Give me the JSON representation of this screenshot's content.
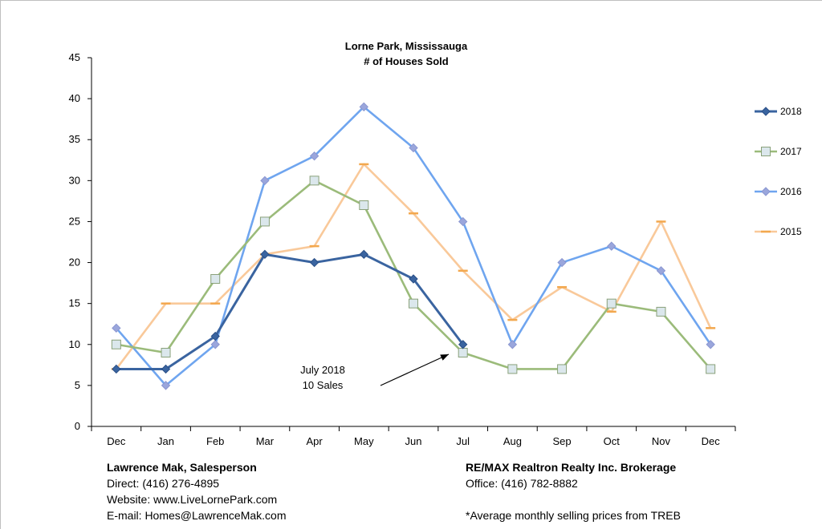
{
  "chart_data": {
    "type": "line",
    "title": "Lorne Park, Mississauga",
    "subtitle": "# of Houses Sold",
    "xlabel": "",
    "ylabel": "",
    "ylim": [
      0,
      45
    ],
    "yticks": [
      0,
      5,
      10,
      15,
      20,
      25,
      30,
      35,
      40,
      45
    ],
    "categories": [
      "Dec",
      "Jan",
      "Feb",
      "Mar",
      "Apr",
      "May",
      "Jun",
      "Jul",
      "Aug",
      "Sep",
      "Oct",
      "Nov",
      "Dec"
    ],
    "grid": false,
    "legend_position": "right",
    "series": [
      {
        "name": "2018",
        "color": "#3a64a0",
        "marker": "diamond",
        "values": [
          7,
          7,
          11,
          21,
          20,
          21,
          18,
          10,
          null,
          null,
          null,
          null,
          null
        ]
      },
      {
        "name": "2017",
        "color": "#9bbb7a",
        "marker": "square",
        "values": [
          10,
          9,
          18,
          25,
          30,
          27,
          15,
          9,
          7,
          7,
          15,
          14,
          7
        ]
      },
      {
        "name": "2016",
        "color": "#6fa5ef",
        "marker": "diamond",
        "values": [
          12,
          5,
          10,
          30,
          33,
          39,
          34,
          25,
          10,
          20,
          22,
          19,
          10
        ]
      },
      {
        "name": "2015",
        "color": "#f9c99a",
        "marker": "dash",
        "values": [
          7,
          15,
          15,
          21,
          22,
          32,
          26,
          19,
          13,
          17,
          14,
          25,
          12
        ]
      }
    ],
    "annotation": {
      "line1": "July 2018",
      "line2": "10 Sales",
      "points_to_category": "Jul",
      "points_to_value": 9
    }
  },
  "footer": {
    "agent_name": "Lawrence Mak, Salesperson",
    "direct": "Direct:  (416) 276-4895",
    "website": "Website:  www.LiveLornePark.com",
    "email": "E-mail:  Homes@LawrenceMak.com",
    "brokerage": "RE/MAX Realtron Realty Inc. Brokerage",
    "office": "Office: (416) 782-8882",
    "note": "*Average monthly selling prices from TREB"
  }
}
